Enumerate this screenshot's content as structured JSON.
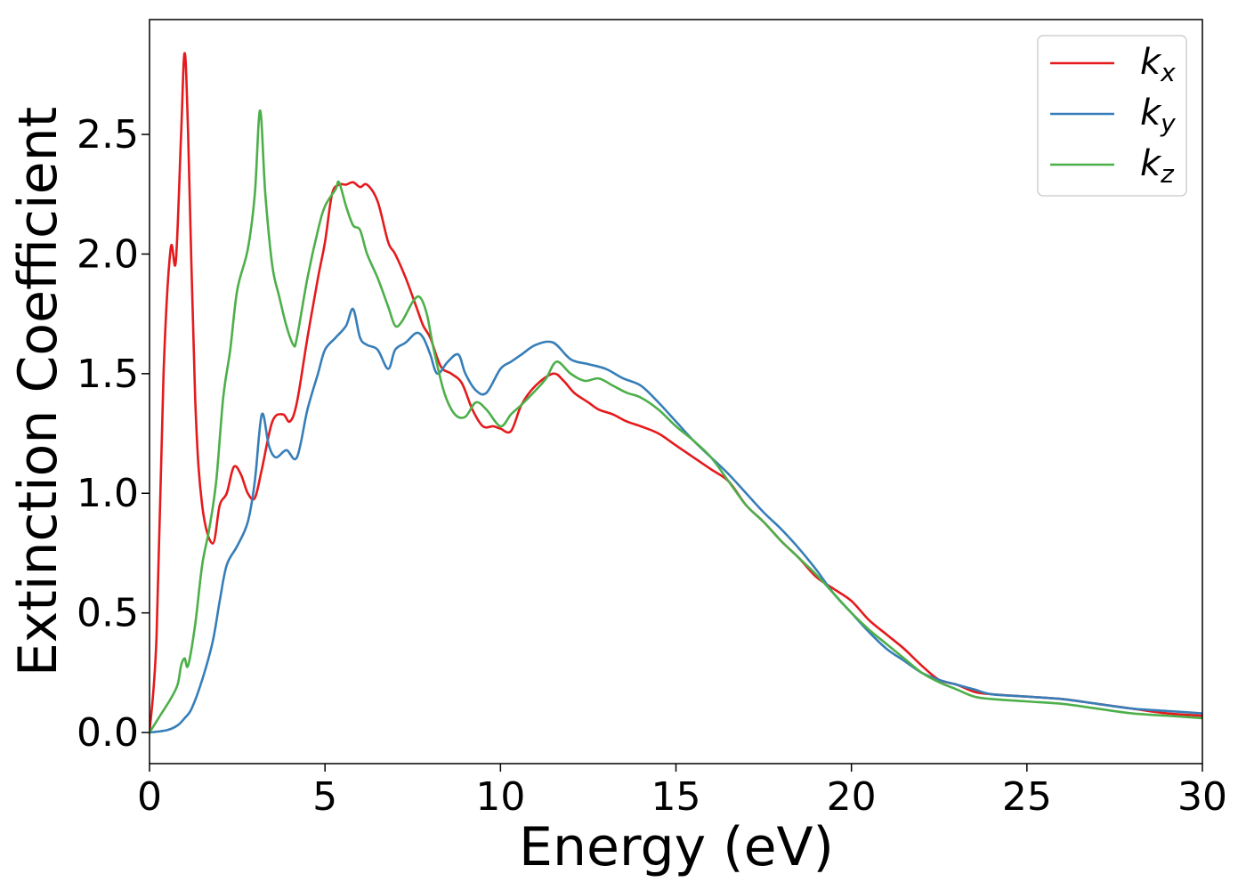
{
  "chart_data": {
    "type": "line",
    "title": "",
    "xlabel": "Energy (eV)",
    "ylabel": "Extinction Coefficient",
    "xlim": [
      0,
      30
    ],
    "ylim": [
      -0.13,
      2.98
    ],
    "xticks": [
      0,
      5,
      10,
      15,
      20,
      25,
      30
    ],
    "xtick_labels": [
      "0",
      "5",
      "10",
      "15",
      "20",
      "25",
      "30"
    ],
    "yticks": [
      0.0,
      0.5,
      1.0,
      1.5,
      2.0,
      2.5
    ],
    "ytick_labels": [
      "0.0",
      "0.5",
      "1.0",
      "1.5",
      "2.0",
      "2.5"
    ],
    "grid": false,
    "legend_position": "top-right",
    "series": [
      {
        "name": "k_x",
        "label_base": "k",
        "label_sub": "x",
        "color": "#e41a1c",
        "x": [
          0,
          0.2,
          0.4,
          0.6,
          0.75,
          0.9,
          1.0,
          1.1,
          1.3,
          1.5,
          1.8,
          2.0,
          2.2,
          2.4,
          2.6,
          2.8,
          3.0,
          3.2,
          3.5,
          3.8,
          4.0,
          4.2,
          4.5,
          4.8,
          5.0,
          5.2,
          5.4,
          5.6,
          5.8,
          6.0,
          6.2,
          6.5,
          6.8,
          7.0,
          7.3,
          7.6,
          7.8,
          8.0,
          8.3,
          8.6,
          8.9,
          9.2,
          9.5,
          9.8,
          10.0,
          10.3,
          10.6,
          11.0,
          11.5,
          11.8,
          12.1,
          12.5,
          12.8,
          13.2,
          13.6,
          14.0,
          14.5,
          15.0,
          15.5,
          16.0,
          16.5,
          17.0,
          17.5,
          18.0,
          18.5,
          19.0,
          19.5,
          20.0,
          20.5,
          21.0,
          21.5,
          22.0,
          22.5,
          23.0,
          23.5,
          24.0,
          25.0,
          26.0,
          27.0,
          28.0,
          29.0,
          30.0
        ],
        "values": [
          0.0,
          0.4,
          1.5,
          2.02,
          1.97,
          2.5,
          2.84,
          2.5,
          1.4,
          0.95,
          0.79,
          0.95,
          1.0,
          1.11,
          1.08,
          1.0,
          0.98,
          1.1,
          1.3,
          1.33,
          1.3,
          1.38,
          1.65,
          1.9,
          2.05,
          2.25,
          2.29,
          2.29,
          2.3,
          2.28,
          2.29,
          2.22,
          2.05,
          2.0,
          1.9,
          1.78,
          1.7,
          1.65,
          1.53,
          1.5,
          1.46,
          1.35,
          1.28,
          1.28,
          1.27,
          1.26,
          1.37,
          1.45,
          1.5,
          1.47,
          1.42,
          1.38,
          1.35,
          1.33,
          1.3,
          1.28,
          1.25,
          1.2,
          1.15,
          1.1,
          1.05,
          0.95,
          0.88,
          0.8,
          0.73,
          0.65,
          0.6,
          0.55,
          0.47,
          0.41,
          0.35,
          0.28,
          0.22,
          0.2,
          0.17,
          0.16,
          0.15,
          0.14,
          0.12,
          0.1,
          0.08,
          0.07
        ]
      },
      {
        "name": "k_y",
        "label_base": "k",
        "label_sub": "y",
        "color": "#377eb8",
        "x": [
          0,
          0.5,
          0.8,
          1.0,
          1.2,
          1.5,
          1.8,
          2.0,
          2.2,
          2.5,
          2.8,
          3.0,
          3.2,
          3.4,
          3.6,
          3.9,
          4.2,
          4.5,
          4.8,
          5.0,
          5.3,
          5.6,
          5.8,
          6.0,
          6.2,
          6.5,
          6.8,
          7.0,
          7.3,
          7.6,
          7.8,
          8.0,
          8.2,
          8.5,
          8.8,
          9.0,
          9.3,
          9.6,
          10.0,
          10.3,
          10.6,
          11.0,
          11.5,
          12.0,
          12.5,
          13.0,
          13.5,
          14.0,
          14.5,
          15.0,
          15.5,
          16.0,
          16.5,
          17.0,
          17.5,
          18.0,
          18.5,
          19.0,
          19.5,
          20.0,
          20.5,
          21.0,
          21.5,
          22.0,
          22.5,
          23.0,
          23.5,
          24.0,
          25.0,
          26.0,
          27.0,
          28.0,
          29.0,
          30.0
        ],
        "values": [
          0.0,
          0.01,
          0.03,
          0.06,
          0.1,
          0.22,
          0.38,
          0.55,
          0.7,
          0.78,
          0.88,
          1.05,
          1.33,
          1.2,
          1.15,
          1.18,
          1.15,
          1.35,
          1.5,
          1.6,
          1.65,
          1.7,
          1.77,
          1.65,
          1.62,
          1.6,
          1.52,
          1.6,
          1.63,
          1.67,
          1.65,
          1.58,
          1.5,
          1.55,
          1.58,
          1.5,
          1.43,
          1.42,
          1.52,
          1.55,
          1.58,
          1.62,
          1.63,
          1.56,
          1.54,
          1.52,
          1.48,
          1.45,
          1.38,
          1.3,
          1.22,
          1.15,
          1.08,
          1.0,
          0.92,
          0.85,
          0.77,
          0.68,
          0.58,
          0.5,
          0.42,
          0.35,
          0.3,
          0.25,
          0.22,
          0.2,
          0.18,
          0.16,
          0.15,
          0.14,
          0.12,
          0.1,
          0.09,
          0.08
        ]
      },
      {
        "name": "k_z",
        "label_base": "k",
        "label_sub": "z",
        "color": "#4daf4a",
        "x": [
          0,
          0.3,
          0.6,
          0.8,
          0.9,
          1.0,
          1.1,
          1.3,
          1.5,
          1.7,
          1.9,
          2.1,
          2.3,
          2.5,
          2.8,
          3.0,
          3.15,
          3.3,
          3.5,
          3.7,
          3.9,
          4.1,
          4.2,
          4.5,
          4.8,
          5.0,
          5.3,
          5.4,
          5.6,
          5.8,
          6.0,
          6.2,
          6.5,
          6.8,
          7.0,
          7.2,
          7.5,
          7.7,
          7.9,
          8.1,
          8.4,
          8.7,
          9.0,
          9.3,
          9.6,
          10.0,
          10.3,
          10.6,
          11.0,
          11.3,
          11.6,
          12.0,
          12.4,
          12.8,
          13.2,
          13.6,
          14.0,
          14.5,
          15.0,
          15.5,
          16.0,
          16.5,
          17.0,
          17.5,
          18.0,
          18.5,
          19.0,
          19.5,
          20.0,
          20.5,
          21.0,
          21.5,
          22.0,
          22.5,
          23.0,
          23.5,
          24.0,
          25.0,
          26.0,
          27.0,
          28.0,
          29.0,
          30.0
        ],
        "values": [
          0.0,
          0.07,
          0.14,
          0.2,
          0.28,
          0.31,
          0.28,
          0.45,
          0.7,
          0.85,
          1.05,
          1.4,
          1.6,
          1.85,
          2.02,
          2.25,
          2.6,
          2.25,
          1.95,
          1.82,
          1.7,
          1.62,
          1.65,
          1.9,
          2.1,
          2.2,
          2.27,
          2.3,
          2.2,
          2.12,
          2.1,
          2.0,
          1.9,
          1.78,
          1.7,
          1.72,
          1.8,
          1.82,
          1.75,
          1.6,
          1.42,
          1.33,
          1.32,
          1.38,
          1.35,
          1.28,
          1.33,
          1.37,
          1.43,
          1.48,
          1.55,
          1.5,
          1.47,
          1.48,
          1.45,
          1.42,
          1.4,
          1.35,
          1.28,
          1.22,
          1.15,
          1.05,
          0.95,
          0.88,
          0.8,
          0.73,
          0.66,
          0.58,
          0.5,
          0.43,
          0.37,
          0.31,
          0.25,
          0.21,
          0.18,
          0.15,
          0.14,
          0.13,
          0.12,
          0.1,
          0.08,
          0.07,
          0.06
        ]
      }
    ]
  }
}
